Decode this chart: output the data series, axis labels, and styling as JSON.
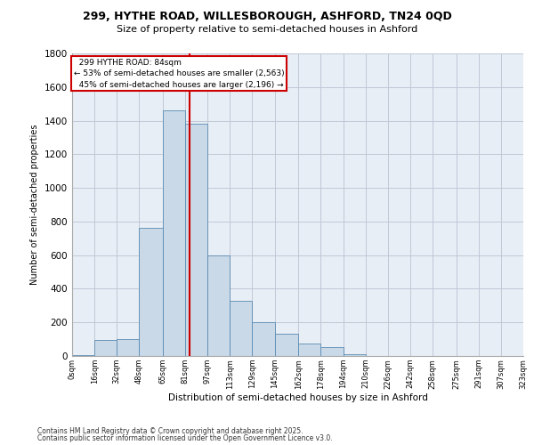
{
  "title_line1": "299, HYTHE ROAD, WILLESBOROUGH, ASHFORD, TN24 0QD",
  "title_line2": "Size of property relative to semi-detached houses in Ashford",
  "xlabel": "Distribution of semi-detached houses by size in Ashford",
  "ylabel": "Number of semi-detached properties",
  "bin_labels": [
    "0sqm",
    "16sqm",
    "32sqm",
    "48sqm",
    "65sqm",
    "81sqm",
    "97sqm",
    "113sqm",
    "129sqm",
    "145sqm",
    "162sqm",
    "178sqm",
    "194sqm",
    "210sqm",
    "226sqm",
    "242sqm",
    "258sqm",
    "275sqm",
    "291sqm",
    "307sqm",
    "323sqm"
  ],
  "bin_edges": [
    0,
    16,
    32,
    48,
    65,
    81,
    97,
    113,
    129,
    145,
    162,
    178,
    194,
    210,
    226,
    242,
    258,
    275,
    291,
    307,
    323
  ],
  "bar_heights": [
    5,
    95,
    100,
    760,
    1460,
    1380,
    600,
    330,
    200,
    130,
    75,
    55,
    10,
    0,
    0,
    0,
    0,
    0,
    0,
    0
  ],
  "bar_color": "#c9d9e8",
  "bar_edge_color": "#5a8ab0",
  "property_value": 84,
  "property_label": "299 HYTHE ROAD: 84sqm",
  "pct_smaller": 53,
  "count_smaller": 2563,
  "pct_larger": 45,
  "count_larger": 2196,
  "vline_color": "#cc0000",
  "annotation_box_color": "#cc0000",
  "grid_color": "#c0c8d8",
  "background_color": "#e8eef5",
  "ylim": [
    0,
    1800
  ],
  "yticks": [
    0,
    200,
    400,
    600,
    800,
    1000,
    1200,
    1400,
    1600,
    1800
  ],
  "footer_line1": "Contains HM Land Registry data © Crown copyright and database right 2025.",
  "footer_line2": "Contains public sector information licensed under the Open Government Licence v3.0."
}
